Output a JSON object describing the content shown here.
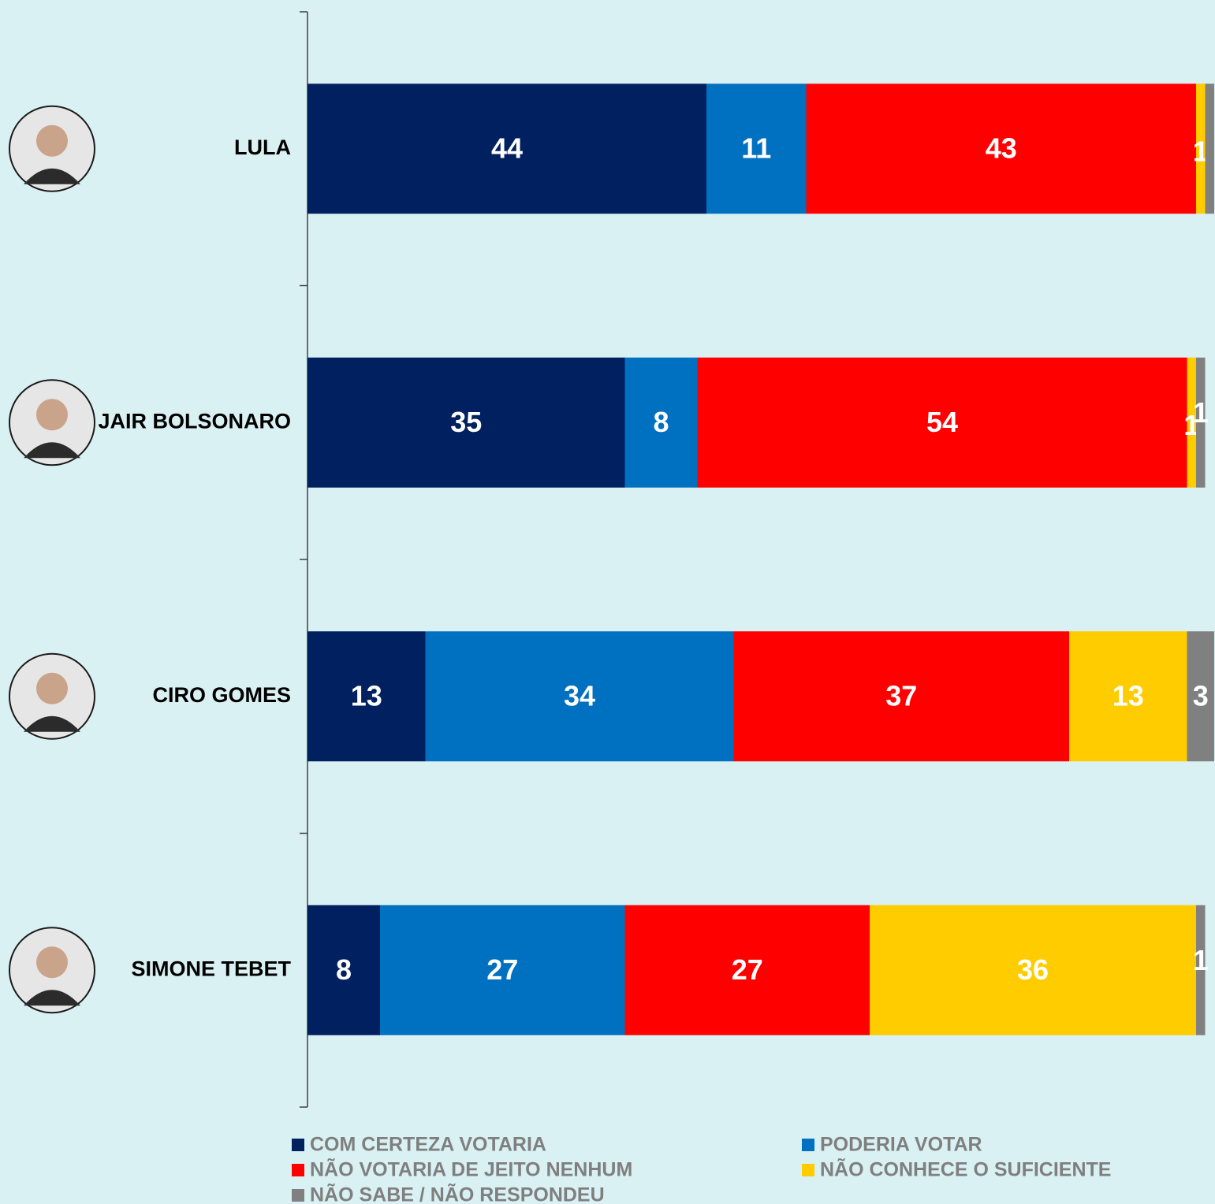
{
  "chart_data": {
    "type": "stacked-bar-horizontal",
    "categories": [
      "LULA",
      "JAIR BOLSONARO",
      "CIRO GOMES",
      "SIMONE TEBET"
    ],
    "xlim": [
      0,
      100
    ],
    "series": [
      {
        "name": "COM CERTEZA VOTARIA",
        "color": "#002060",
        "values": [
          44,
          35,
          13,
          8
        ]
      },
      {
        "name": "PODERIA VOTAR",
        "color": "#0070c0",
        "values": [
          11,
          8,
          34,
          27
        ]
      },
      {
        "name": "NÃO VOTARIA DE JEITO NENHUM",
        "color": "#ff0000",
        "values": [
          43,
          54,
          37,
          27
        ]
      },
      {
        "name": "NÃO CONHECE O SUFICIENTE",
        "color": "#ffcc00",
        "values": [
          1,
          1,
          13,
          36
        ]
      },
      {
        "name": "NÃO SABE / NÃO RESPONDEU",
        "color": "#808080",
        "values": [
          1,
          1,
          3,
          1
        ],
        "value_labels": [
          null,
          "1",
          "3",
          "1"
        ]
      }
    ]
  }
}
